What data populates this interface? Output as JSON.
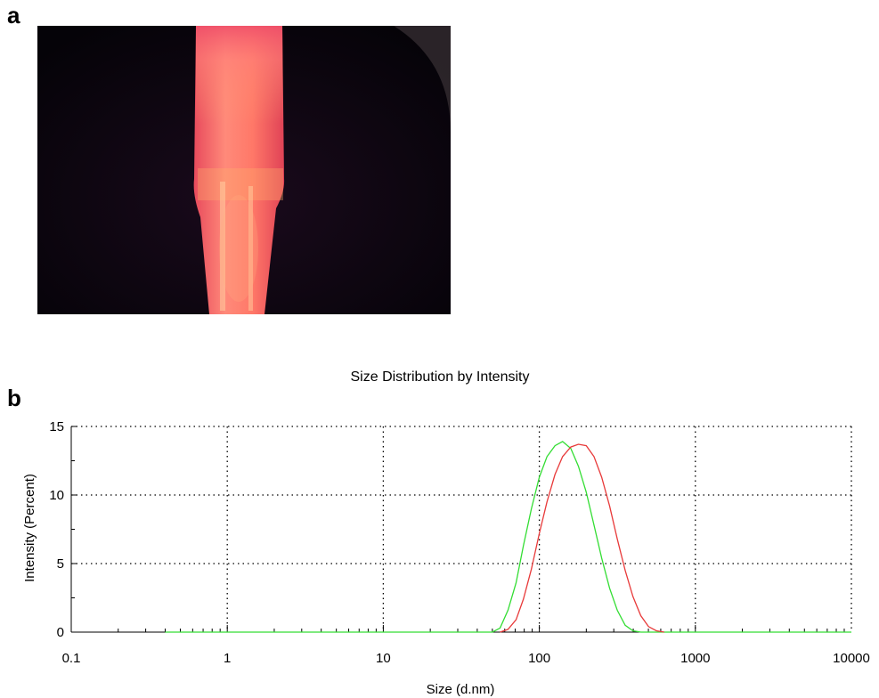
{
  "panels": {
    "a_label": "a",
    "b_label": "b"
  },
  "photo": {
    "description_icon": "fluorescent-vial-photo"
  },
  "chart_data": {
    "type": "line",
    "title": "Size Distribution by Intensity",
    "xlabel": "Size (d.nm)",
    "ylabel": "Intensity (Percent)",
    "xscale": "log",
    "xlim": [
      0.1,
      10000
    ],
    "ylim": [
      0,
      15
    ],
    "x_ticks": [
      0.1,
      1,
      10,
      100,
      1000,
      10000
    ],
    "x_tick_labels": [
      "0.1",
      "1",
      "10",
      "100",
      "1000",
      "10000"
    ],
    "y_ticks": [
      0,
      5,
      10,
      15
    ],
    "y_tick_labels": [
      "0",
      "5",
      "10",
      "15"
    ],
    "grid": true,
    "series": [
      {
        "color": "#33dd33",
        "x": [
          0.4,
          50,
          56,
          63,
          71,
          79,
          89,
          100,
          112,
          126,
          141,
          159,
          178,
          200,
          224,
          251,
          282,
          316,
          355,
          398,
          447,
          10000
        ],
        "y": [
          0,
          0,
          0.3,
          1.6,
          3.6,
          6.3,
          9.0,
          11.3,
          12.8,
          13.6,
          13.9,
          13.4,
          12.1,
          10.2,
          7.8,
          5.4,
          3.2,
          1.6,
          0.5,
          0.1,
          0,
          0
        ]
      },
      {
        "color": "#e83a3a",
        "x": [
          56,
          63,
          71,
          79,
          89,
          100,
          112,
          126,
          141,
          159,
          178,
          200,
          224,
          251,
          282,
          316,
          355,
          398,
          447,
          501,
          562,
          631
        ],
        "y": [
          0,
          0.2,
          0.9,
          2.4,
          4.6,
          7.2,
          9.5,
          11.5,
          12.8,
          13.5,
          13.7,
          13.6,
          12.8,
          11.3,
          9.2,
          6.8,
          4.5,
          2.6,
          1.2,
          0.4,
          0.1,
          0
        ]
      }
    ]
  }
}
